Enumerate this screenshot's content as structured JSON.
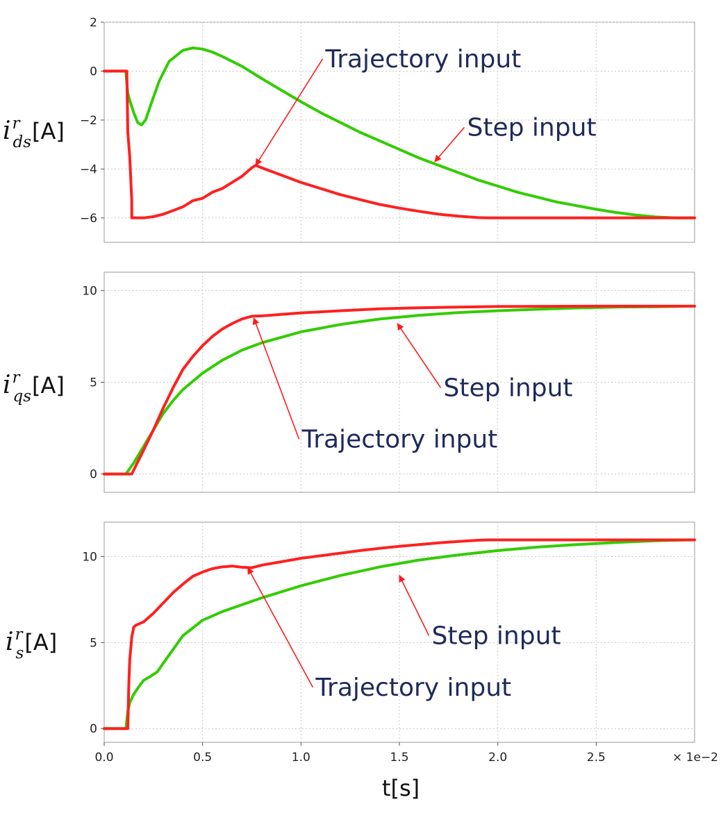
{
  "chart_data": [
    {
      "type": "line",
      "id": "panel-ids",
      "ylabel": {
        "symbol": "i",
        "sup": "r",
        "sub": "ds",
        "unit": "[A]"
      },
      "ylim": [
        -7,
        2
      ],
      "yticks": [
        -6,
        -4,
        -2,
        0,
        2
      ],
      "ytick_labels": [
        "−6",
        "−4",
        "−2",
        "0",
        "2"
      ],
      "xlim": [
        0.0,
        0.03
      ],
      "grid": true,
      "series": [
        {
          "name": "Step input",
          "color": "#33cc00",
          "x": [
            0,
            0.0011,
            0.00115,
            0.0012,
            0.0013,
            0.0015,
            0.0017,
            0.0019,
            0.0021,
            0.0024,
            0.0028,
            0.0033,
            0.004,
            0.0045,
            0.005,
            0.0055,
            0.006,
            0.007,
            0.008,
            0.009,
            0.01,
            0.011,
            0.012,
            0.013,
            0.014,
            0.015,
            0.016,
            0.017,
            0.018,
            0.019,
            0.02,
            0.021,
            0.022,
            0.023,
            0.024,
            0.025,
            0.026,
            0.027,
            0.028,
            0.029,
            0.03
          ],
          "y": [
            0,
            0,
            -0.5,
            -0.9,
            -1.2,
            -1.7,
            -2.1,
            -2.2,
            -2.0,
            -1.3,
            -0.4,
            0.4,
            0.85,
            0.95,
            0.9,
            0.78,
            0.6,
            0.2,
            -0.3,
            -0.78,
            -1.25,
            -1.7,
            -2.1,
            -2.5,
            -2.85,
            -3.2,
            -3.55,
            -3.85,
            -4.15,
            -4.45,
            -4.7,
            -4.95,
            -5.15,
            -5.35,
            -5.5,
            -5.65,
            -5.78,
            -5.88,
            -5.96,
            -6.0,
            -6.0
          ]
        },
        {
          "name": "Trajectory input",
          "color": "#ff2020",
          "x": [
            0,
            0.00115,
            0.0012,
            0.0013,
            0.0014,
            0.0014,
            0.0017,
            0.002,
            0.0025,
            0.003,
            0.0035,
            0.004,
            0.0045,
            0.005,
            0.0055,
            0.006,
            0.0065,
            0.007,
            0.0075,
            0.0077,
            0.008,
            0.009,
            0.01,
            0.011,
            0.012,
            0.013,
            0.014,
            0.015,
            0.016,
            0.017,
            0.018,
            0.019,
            0.0195,
            0.02,
            0.025,
            0.03
          ],
          "y": [
            0,
            0,
            -2.5,
            -3.5,
            -5.3,
            -6.0,
            -6.0,
            -6.0,
            -5.95,
            -5.85,
            -5.7,
            -5.55,
            -5.3,
            -5.2,
            -4.95,
            -4.8,
            -4.55,
            -4.3,
            -3.95,
            -3.85,
            -3.95,
            -4.25,
            -4.55,
            -4.8,
            -5.05,
            -5.25,
            -5.45,
            -5.6,
            -5.73,
            -5.85,
            -5.93,
            -5.99,
            -6.0,
            -6.0,
            -6.0,
            -6.0
          ]
        }
      ],
      "annotations": [
        {
          "text": "Trajectory input",
          "x": 0.0111,
          "y": 0.5,
          "target_x": 0.0077,
          "target_y": -3.85
        },
        {
          "text": "Step input",
          "x": 0.0183,
          "y": -2.3,
          "target_x": 0.0168,
          "target_y": -3.7
        }
      ]
    },
    {
      "type": "line",
      "id": "panel-iqs",
      "ylabel": {
        "symbol": "i",
        "sup": "r",
        "sub": "qs",
        "unit": "[A]"
      },
      "ylim": [
        -1,
        11
      ],
      "yticks": [
        0,
        5,
        10
      ],
      "ytick_labels": [
        "0",
        "5",
        "10"
      ],
      "xlim": [
        0.0,
        0.03
      ],
      "grid": true,
      "series": [
        {
          "name": "Step input",
          "color": "#33cc00",
          "x": [
            0,
            0.0011,
            0.0015,
            0.002,
            0.0025,
            0.003,
            0.0035,
            0.004,
            0.005,
            0.006,
            0.007,
            0.008,
            0.01,
            0.012,
            0.014,
            0.016,
            0.018,
            0.02,
            0.022,
            0.024,
            0.026,
            0.028,
            0.03
          ],
          "y": [
            0,
            0,
            0.6,
            1.5,
            2.4,
            3.3,
            4.0,
            4.6,
            5.5,
            6.2,
            6.75,
            7.15,
            7.75,
            8.15,
            8.45,
            8.65,
            8.8,
            8.9,
            8.98,
            9.05,
            9.1,
            9.12,
            9.15
          ]
        },
        {
          "name": "Trajectory input",
          "color": "#ff2020",
          "x": [
            0,
            0.0014,
            0.002,
            0.0025,
            0.003,
            0.0035,
            0.004,
            0.0045,
            0.005,
            0.0055,
            0.006,
            0.0065,
            0.007,
            0.0075,
            0.008,
            0.009,
            0.01,
            0.012,
            0.014,
            0.016,
            0.018,
            0.02,
            0.025,
            0.03
          ],
          "y": [
            0,
            0,
            1.3,
            2.4,
            3.6,
            4.7,
            5.7,
            6.4,
            7.0,
            7.5,
            7.9,
            8.2,
            8.45,
            8.6,
            8.62,
            8.7,
            8.78,
            8.9,
            9.0,
            9.06,
            9.1,
            9.13,
            9.15,
            9.15
          ]
        }
      ],
      "annotations": [
        {
          "text": "Step input",
          "x": 0.0171,
          "y": 4.7,
          "target_x": 0.0149,
          "target_y": 8.2
        },
        {
          "text": "Trajectory input",
          "x": 0.0099,
          "y": 1.9,
          "target_x": 0.0076,
          "target_y": 8.5
        }
      ]
    },
    {
      "type": "line",
      "id": "panel-is",
      "ylabel": {
        "symbol": "i",
        "sup": "r",
        "sub": "s",
        "unit": "[A]"
      },
      "ylim": [
        -0.8,
        12
      ],
      "yticks": [
        0,
        5,
        10
      ],
      "ytick_labels": [
        "0",
        "5",
        "10"
      ],
      "xlim": [
        0.0,
        0.03
      ],
      "xticks": [
        0.0,
        0.005,
        0.01,
        0.015,
        0.02,
        0.025
      ],
      "xtick_labels": [
        "0.0",
        "0.5",
        "1.0",
        "1.5",
        "2.0",
        "2.5"
      ],
      "xscale_label": "× 1e−2",
      "xlabel": "t[s]",
      "grid": true,
      "series": [
        {
          "name": "Step input",
          "color": "#33cc00",
          "x": [
            0,
            0.0011,
            0.0012,
            0.0013,
            0.0015,
            0.0018,
            0.002,
            0.0023,
            0.0027,
            0.003,
            0.0035,
            0.004,
            0.005,
            0.006,
            0.007,
            0.008,
            0.01,
            0.012,
            0.014,
            0.016,
            0.018,
            0.02,
            0.022,
            0.024,
            0.026,
            0.028,
            0.029,
            0.03
          ],
          "y": [
            0,
            0,
            1.0,
            1.5,
            2.0,
            2.5,
            2.8,
            3.0,
            3.3,
            3.8,
            4.6,
            5.4,
            6.3,
            6.8,
            7.2,
            7.6,
            8.3,
            8.9,
            9.4,
            9.8,
            10.1,
            10.35,
            10.55,
            10.7,
            10.82,
            10.92,
            10.95,
            10.97
          ]
        },
        {
          "name": "Trajectory input",
          "color": "#ff2020",
          "x": [
            0,
            0.0012,
            0.00125,
            0.0013,
            0.0014,
            0.0015,
            0.0016,
            0.002,
            0.0025,
            0.003,
            0.0035,
            0.004,
            0.0045,
            0.005,
            0.0055,
            0.006,
            0.0065,
            0.007,
            0.0075,
            0.008,
            0.009,
            0.01,
            0.011,
            0.012,
            0.013,
            0.014,
            0.015,
            0.016,
            0.017,
            0.018,
            0.019,
            0.0195,
            0.02,
            0.025,
            0.03
          ],
          "y": [
            0,
            0,
            2.5,
            4.0,
            5.3,
            5.9,
            6.0,
            6.2,
            6.7,
            7.3,
            7.9,
            8.4,
            8.85,
            9.1,
            9.3,
            9.4,
            9.45,
            9.38,
            9.35,
            9.5,
            9.7,
            9.9,
            10.05,
            10.2,
            10.35,
            10.48,
            10.6,
            10.7,
            10.8,
            10.88,
            10.95,
            10.97,
            10.97,
            10.97,
            10.97
          ]
        }
      ],
      "annotations": [
        {
          "text": "Step input",
          "x": 0.0165,
          "y": 5.4,
          "target_x": 0.015,
          "target_y": 8.9
        },
        {
          "text": "Trajectory input",
          "x": 0.0106,
          "y": 2.4,
          "target_x": 0.0073,
          "target_y": 9.35
        }
      ]
    }
  ]
}
